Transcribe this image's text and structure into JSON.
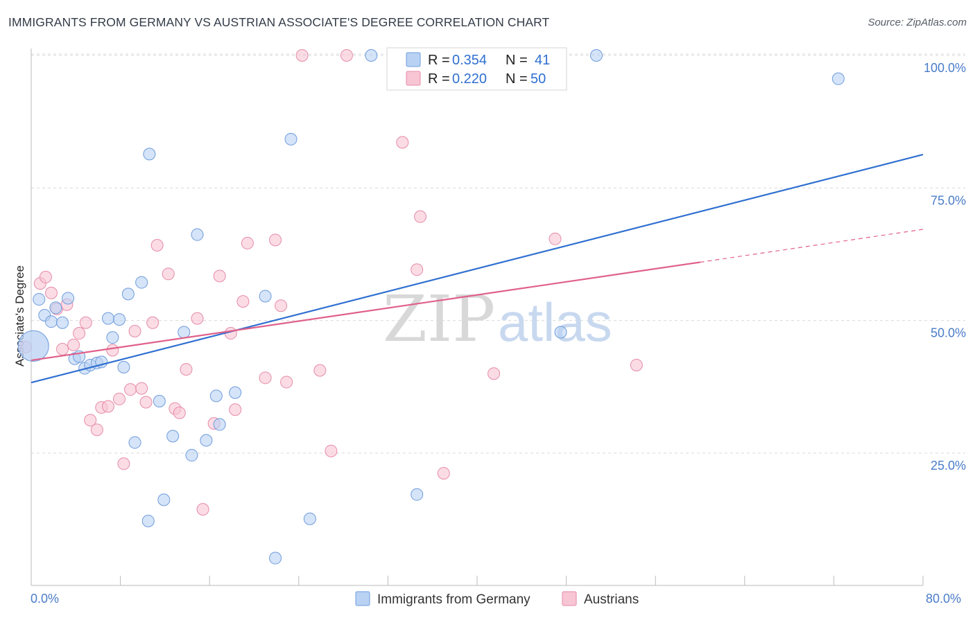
{
  "header": {
    "title": "IMMIGRANTS FROM GERMANY VS AUSTRIAN ASSOCIATE'S DEGREE CORRELATION CHART",
    "source": "Source: ZipAtlas.com"
  },
  "watermark": {
    "part1": "ZIP",
    "part2": "atlas"
  },
  "legend": {
    "blue": {
      "r_label": "R = ",
      "r_value": "0.354",
      "n_label": "N = ",
      "n_value": "41"
    },
    "pink": {
      "r_label": "R = ",
      "r_value": "0.220",
      "n_label": "N = ",
      "n_value": "50"
    }
  },
  "colors": {
    "blue_fill": "#b9d2f3",
    "blue_stroke": "#6e9bdc",
    "blue_line": "#2f6fd0",
    "pink_fill": "#f8c5d4",
    "pink_stroke": "#e58aa8",
    "pink_line": "#e0608a",
    "grid": "#d9d9d9",
    "axis": "#bbbbbb"
  },
  "chart_data": {
    "type": "scatter",
    "title": "IMMIGRANTS FROM GERMANY VS AUSTRIAN ASSOCIATE'S DEGREE CORRELATION CHART",
    "xlabel": "",
    "ylabel": "Associate's Degree",
    "xlim": [
      0,
      80
    ],
    "ylim": [
      0,
      103
    ],
    "x_tick_labels": [
      "0.0%",
      "80.0%"
    ],
    "y_ticks": [
      25,
      50,
      75,
      100
    ],
    "y_tick_labels": [
      "25.0%",
      "50.0%",
      "75.0%",
      "100.0%"
    ],
    "grid": true,
    "legend_position": "top-center",
    "series": [
      {
        "name": "Immigrants from Germany",
        "color": "blue",
        "R": 0.354,
        "N": 41,
        "trend": {
          "x0": 0,
          "y0": 38.3,
          "x1": 80,
          "y1": 81.3
        },
        "points": [
          [
            0.2,
            45.2,
            "big"
          ],
          [
            0.7,
            54.0
          ],
          [
            1.2,
            51.0
          ],
          [
            1.8,
            49.8
          ],
          [
            2.2,
            52.4
          ],
          [
            2.8,
            49.6
          ],
          [
            3.3,
            54.2
          ],
          [
            3.9,
            42.8
          ],
          [
            4.3,
            43.2
          ],
          [
            4.8,
            41.0
          ],
          [
            5.3,
            41.6
          ],
          [
            5.9,
            42.0
          ],
          [
            6.3,
            42.2
          ],
          [
            6.9,
            50.4
          ],
          [
            7.3,
            46.8
          ],
          [
            7.9,
            50.2
          ],
          [
            8.3,
            41.2
          ],
          [
            8.7,
            55.0
          ],
          [
            9.3,
            27.0
          ],
          [
            9.9,
            57.2
          ],
          [
            10.5,
            12.2
          ],
          [
            10.6,
            81.4
          ],
          [
            11.5,
            34.8
          ],
          [
            11.9,
            16.2
          ],
          [
            12.7,
            28.2
          ],
          [
            13.7,
            47.8
          ],
          [
            14.4,
            24.6
          ],
          [
            14.9,
            66.2
          ],
          [
            15.7,
            27.4
          ],
          [
            16.6,
            35.8
          ],
          [
            16.9,
            30.4
          ],
          [
            18.3,
            36.4
          ],
          [
            21.0,
            54.6
          ],
          [
            21.9,
            5.2
          ],
          [
            23.3,
            84.2
          ],
          [
            25.0,
            12.6
          ],
          [
            30.5,
            100.0
          ],
          [
            34.6,
            17.2
          ],
          [
            47.5,
            47.8
          ],
          [
            50.7,
            100.0
          ],
          [
            72.4,
            95.6
          ]
        ]
      },
      {
        "name": "Austrians",
        "color": "pink",
        "R": 0.22,
        "N": 50,
        "trend": {
          "x0": 0,
          "y0": 42.5,
          "x1": 60,
          "y1": 61.0
        },
        "trend_dashed": {
          "x0": 60,
          "y0": 61.0,
          "x1": 80,
          "y1": 67.2
        },
        "points": [
          [
            0.8,
            57.0
          ],
          [
            1.3,
            58.2
          ],
          [
            1.8,
            55.2
          ],
          [
            2.3,
            52.2
          ],
          [
            2.8,
            44.6
          ],
          [
            3.2,
            53.0
          ],
          [
            3.8,
            45.4
          ],
          [
            4.3,
            47.6
          ],
          [
            4.9,
            49.6
          ],
          [
            5.3,
            31.2
          ],
          [
            5.9,
            29.4
          ],
          [
            6.3,
            33.6
          ],
          [
            6.9,
            33.8
          ],
          [
            7.3,
            44.4
          ],
          [
            7.9,
            35.2
          ],
          [
            8.3,
            23.0
          ],
          [
            8.9,
            37.0
          ],
          [
            9.3,
            48.0
          ],
          [
            9.9,
            37.2
          ],
          [
            10.3,
            34.6
          ],
          [
            10.9,
            49.6
          ],
          [
            11.3,
            64.2
          ],
          [
            12.3,
            58.8
          ],
          [
            12.9,
            33.4
          ],
          [
            13.3,
            32.6
          ],
          [
            13.9,
            40.8
          ],
          [
            14.9,
            50.4
          ],
          [
            15.4,
            14.4
          ],
          [
            16.4,
            30.6
          ],
          [
            16.9,
            58.4
          ],
          [
            17.9,
            47.6
          ],
          [
            18.3,
            33.2
          ],
          [
            19.0,
            53.6
          ],
          [
            19.4,
            64.6
          ],
          [
            21.0,
            39.2
          ],
          [
            21.9,
            65.2
          ],
          [
            22.4,
            52.8
          ],
          [
            22.9,
            38.4
          ],
          [
            24.3,
            100.0
          ],
          [
            25.9,
            40.6
          ],
          [
            26.9,
            25.4
          ],
          [
            28.3,
            100.0
          ],
          [
            33.3,
            83.6
          ],
          [
            34.6,
            59.6
          ],
          [
            34.9,
            69.6
          ],
          [
            37.0,
            21.2
          ],
          [
            41.5,
            40.0
          ],
          [
            47.0,
            65.4
          ],
          [
            54.3,
            41.6
          ],
          [
            -0.5,
            45.0
          ]
        ]
      }
    ]
  },
  "bottom_legend": {
    "item1": "Immigrants from Germany",
    "item2": "Austrians"
  }
}
